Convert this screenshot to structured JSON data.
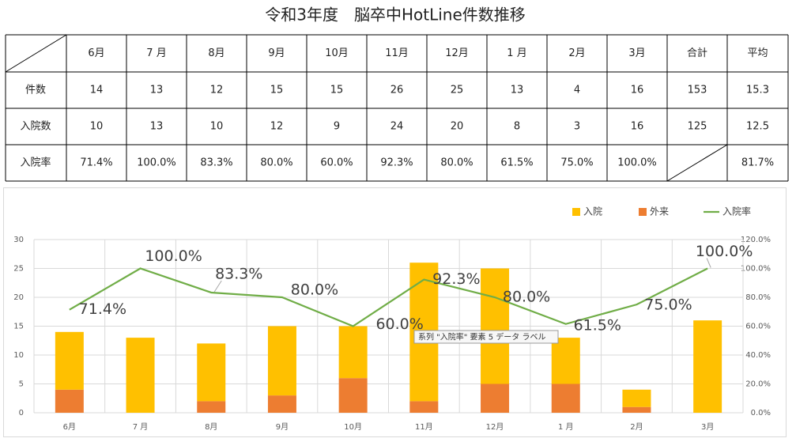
{
  "title": "令和3年度　脳卒中HotLine件数推移",
  "table": {
    "header": [
      "6月",
      "7 月",
      "8月",
      "9月",
      "10月",
      "11月",
      "12月",
      "1 月",
      "2月",
      "3月",
      "合計",
      "平均"
    ],
    "rows": [
      {
        "label": "件数",
        "cells": [
          "14",
          "13",
          "12",
          "15",
          "15",
          "26",
          "25",
          "13",
          "4",
          "16",
          "153",
          "15.3"
        ]
      },
      {
        "label": "入院数",
        "cells": [
          "10",
          "13",
          "10",
          "12",
          "9",
          "24",
          "20",
          "8",
          "3",
          "16",
          "125",
          "12.5"
        ]
      },
      {
        "label": "入院率",
        "cells": [
          "71.4%",
          "100.0%",
          "83.3%",
          "80.0%",
          "60.0%",
          "92.3%",
          "80.0%",
          "61.5%",
          "75.0%",
          "100.0%",
          null,
          "81.7%"
        ]
      }
    ]
  },
  "chart_data": {
    "type": "bar",
    "stacked": true,
    "categories": [
      "6月",
      "7 月",
      "8月",
      "9月",
      "10月",
      "11月",
      "12月",
      "1 月",
      "2月",
      "3月"
    ],
    "series": [
      {
        "name": "入院",
        "color": "#ffc000",
        "type": "bar",
        "values": [
          10,
          13,
          10,
          12,
          9,
          24,
          20,
          8,
          3,
          16
        ]
      },
      {
        "name": "外来",
        "color": "#ed7d31",
        "type": "bar",
        "values": [
          4,
          0,
          2,
          3,
          6,
          2,
          5,
          5,
          1,
          0
        ]
      },
      {
        "name": "入院率",
        "color": "#70ad47",
        "type": "line",
        "axis": "y2",
        "values": [
          71.4,
          100,
          83.3,
          80,
          60,
          92.3,
          80,
          61.5,
          75,
          100
        ],
        "value_labels": [
          "71.4%",
          "100.0%",
          "83.3%",
          "80.0%",
          "60.0%",
          "92.3%",
          "80.0%",
          "61.5%",
          "75.0%",
          "100.0%"
        ]
      }
    ],
    "ylim": [
      0,
      30
    ],
    "yticks": [
      0,
      5,
      10,
      15,
      20,
      25,
      30
    ],
    "y2lim": [
      0,
      120
    ],
    "y2ticks": [
      {
        "value": 0,
        "label": "0.0%"
      },
      {
        "value": 20,
        "label": "20.0%"
      },
      {
        "value": 40,
        "label": "40.0%"
      },
      {
        "value": 60,
        "label": "60.0%"
      },
      {
        "value": 80,
        "label": "80.0%"
      },
      {
        "value": 100,
        "label": "100.0%"
      },
      {
        "value": 120,
        "label": "120.0%"
      }
    ],
    "grid": true,
    "legend": "top-right",
    "tooltip": "系列 \"入院率\" 要素 5 データ ラベル"
  }
}
